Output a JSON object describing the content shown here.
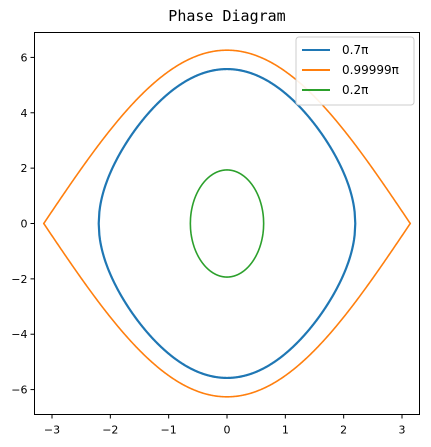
{
  "chart_data": {
    "type": "line",
    "title": "Phase Diagram",
    "xlabel": "",
    "ylabel": "",
    "xlim": [
      -3.3,
      3.3
    ],
    "ylim": [
      -6.9,
      6.9
    ],
    "xticks": [
      -3,
      -2,
      -1,
      0,
      1,
      2,
      3
    ],
    "yticks": [
      -6,
      -4,
      -2,
      0,
      2,
      4,
      6
    ],
    "xtick_labels": [
      "−3",
      "−2",
      "−1",
      "0",
      "1",
      "2",
      "3"
    ],
    "ytick_labels": [
      "−6",
      "−4",
      "−2",
      "0",
      "2",
      "4",
      "6"
    ],
    "grid": false,
    "legend_position": "top-right",
    "series": [
      {
        "name": "0.7π",
        "amplitude_rad": 2.1991,
        "color": "#1f77b4"
      },
      {
        "name": "0.99999π",
        "amplitude_rad": 3.14156,
        "color": "#ff7f0e"
      },
      {
        "name": "0.2π",
        "amplitude_rad": 0.6283,
        "color": "#2ca02c"
      }
    ]
  }
}
